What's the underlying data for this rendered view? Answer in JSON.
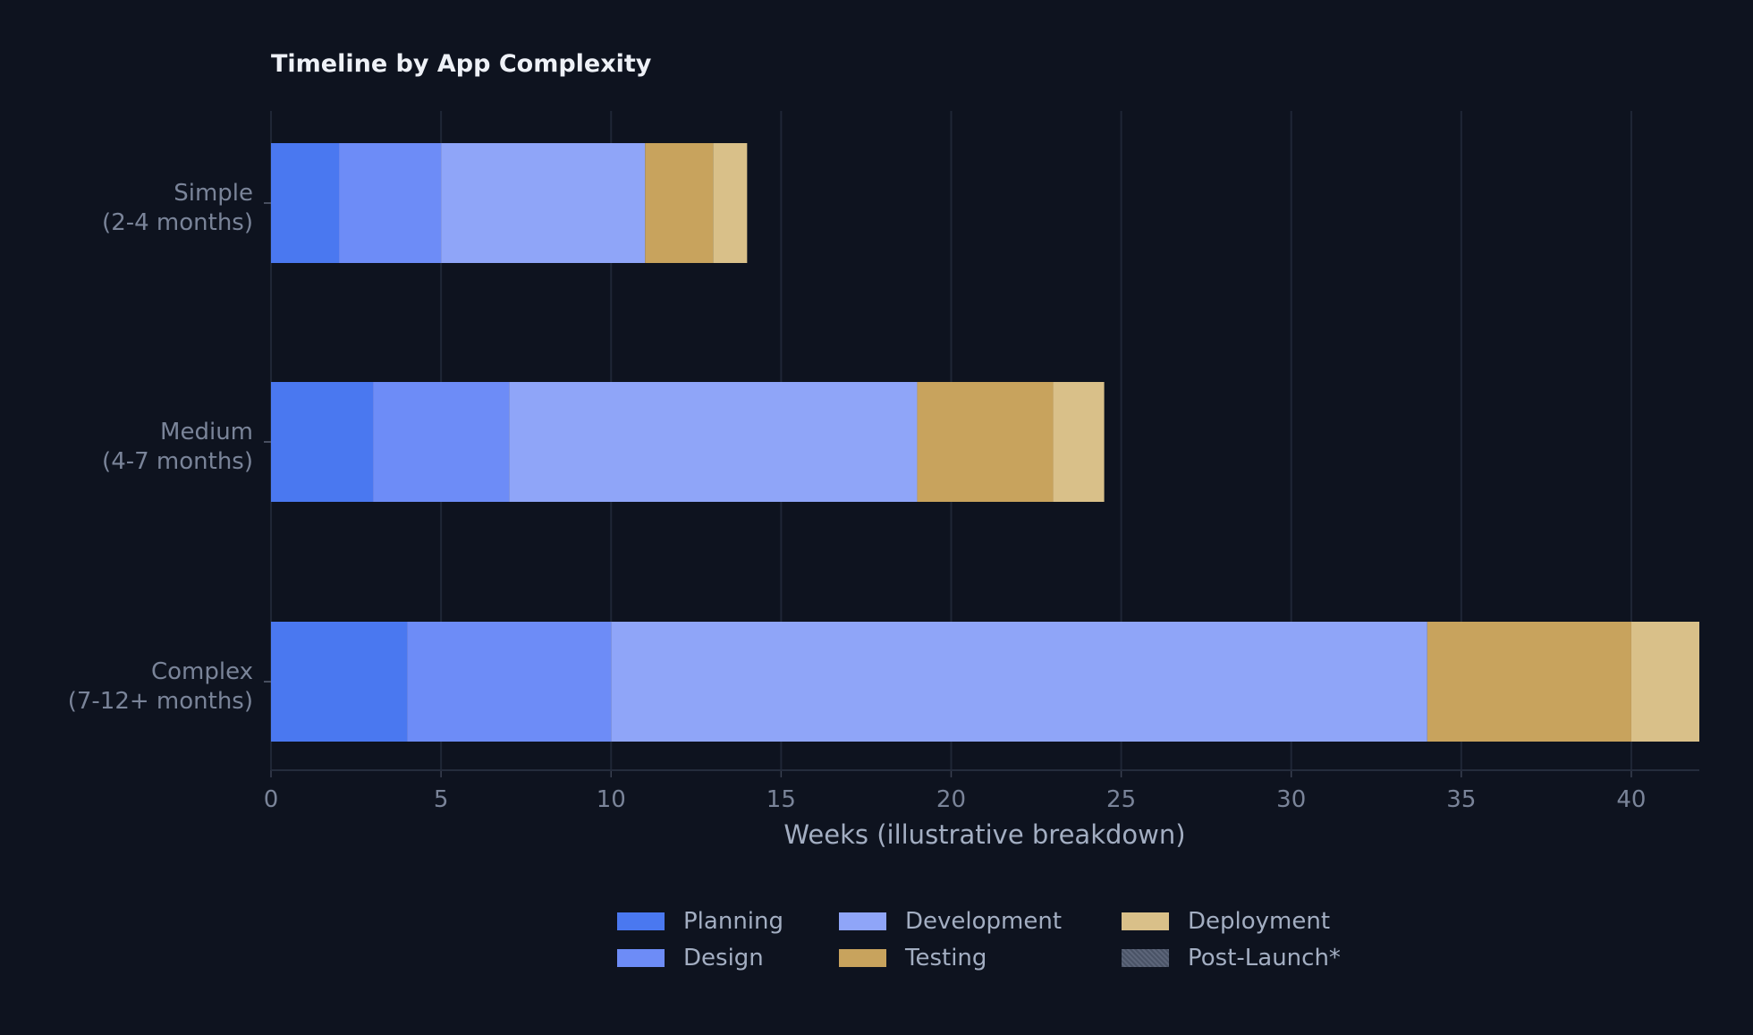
{
  "chart_data": {
    "type": "bar",
    "orientation": "horizontal",
    "stacked": true,
    "title": "Timeline by App Complexity",
    "xlabel": "Weeks (illustrative breakdown)",
    "ylabel": "",
    "xlim": [
      0,
      42
    ],
    "xticks": [
      0,
      5,
      10,
      15,
      20,
      25,
      30,
      35,
      40
    ],
    "grid": "vertical",
    "legend_position": "bottom-center",
    "categories": [
      [
        "Simple",
        "(2-4 months)"
      ],
      [
        "Medium",
        "(4-7 months)"
      ],
      [
        "Complex",
        "(7-12+ months)"
      ]
    ],
    "series": [
      {
        "name": "Planning",
        "color": "#4a78f0",
        "values": [
          2,
          3,
          4
        ]
      },
      {
        "name": "Design",
        "color": "#6d8cf7",
        "values": [
          3,
          4,
          6
        ]
      },
      {
        "name": "Development",
        "color": "#8fa5f8",
        "values": [
          6,
          12,
          24
        ]
      },
      {
        "name": "Testing",
        "color": "#c8a35d",
        "values": [
          2,
          4,
          6
        ]
      },
      {
        "name": "Deployment",
        "color": "#d9c089",
        "values": [
          1,
          1.5,
          2
        ]
      },
      {
        "name": "Post-Launch*",
        "color": "#525b6e",
        "pattern": "crosshatch",
        "values": [
          0,
          0,
          0
        ]
      }
    ],
    "colors": {
      "background": "#0e131f",
      "title": "#eef1f7",
      "tick_label": "#7a8499",
      "axis_label": "#a3aec2",
      "grid": "#1f2636"
    }
  }
}
